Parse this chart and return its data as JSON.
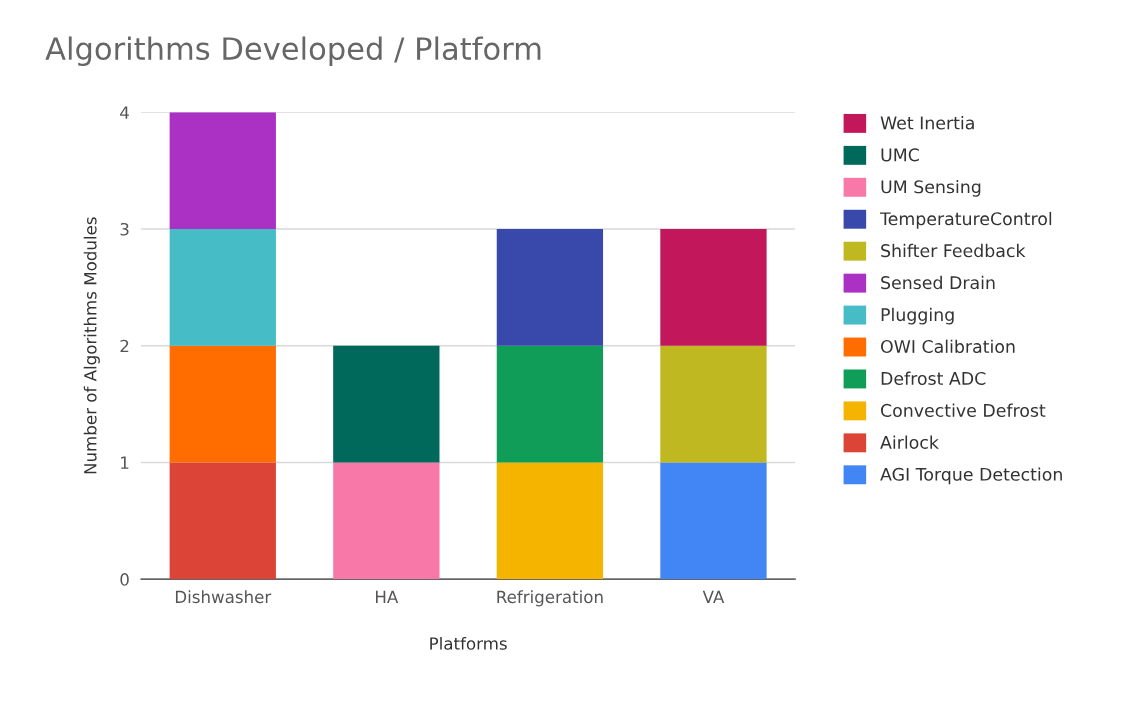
{
  "chart_data": {
    "type": "bar",
    "title": "Algorithms Developed / Platform",
    "xlabel": "Platforms",
    "ylabel": "Number of Algorithms Modules",
    "categories": [
      "Dishwasher",
      "HA",
      "Refrigeration",
      "VA"
    ],
    "stacked": true,
    "ylim": [
      0,
      4
    ],
    "yticks": [
      0,
      1,
      2,
      3,
      4
    ],
    "grid": "y",
    "legend": "right",
    "series": [
      {
        "name": "AGI Torque Detection",
        "color": "#4285f4",
        "values": [
          null,
          null,
          null,
          1
        ]
      },
      {
        "name": "Airlock",
        "color": "#db4437",
        "values": [
          1,
          null,
          null,
          null
        ]
      },
      {
        "name": "Convective Defrost",
        "color": "#f4b400",
        "values": [
          null,
          null,
          1,
          null
        ]
      },
      {
        "name": "Defrost ADC",
        "color": "#0f9d58",
        "values": [
          null,
          null,
          1,
          null
        ]
      },
      {
        "name": "OWI Calibration",
        "color": "#ff6d00",
        "values": [
          1,
          null,
          null,
          null
        ]
      },
      {
        "name": "Plugging",
        "color": "#46bdc6",
        "values": [
          1,
          null,
          null,
          null
        ]
      },
      {
        "name": "Sensed Drain",
        "color": "#ab30c4",
        "values": [
          1,
          null,
          null,
          null
        ]
      },
      {
        "name": "Shifter Feedback",
        "color": "#c0b820",
        "values": [
          null,
          null,
          null,
          1
        ]
      },
      {
        "name": "TemperatureControl",
        "color": "#3949ab",
        "values": [
          null,
          null,
          1,
          null
        ]
      },
      {
        "name": "UM Sensing",
        "color": "#f878a8",
        "values": [
          null,
          1,
          null,
          null
        ]
      },
      {
        "name": "UMC",
        "color": "#00695c",
        "values": [
          null,
          1,
          null,
          null
        ]
      },
      {
        "name": "Wet Inertia",
        "color": "#c2185b",
        "values": [
          null,
          null,
          null,
          1
        ]
      }
    ]
  }
}
